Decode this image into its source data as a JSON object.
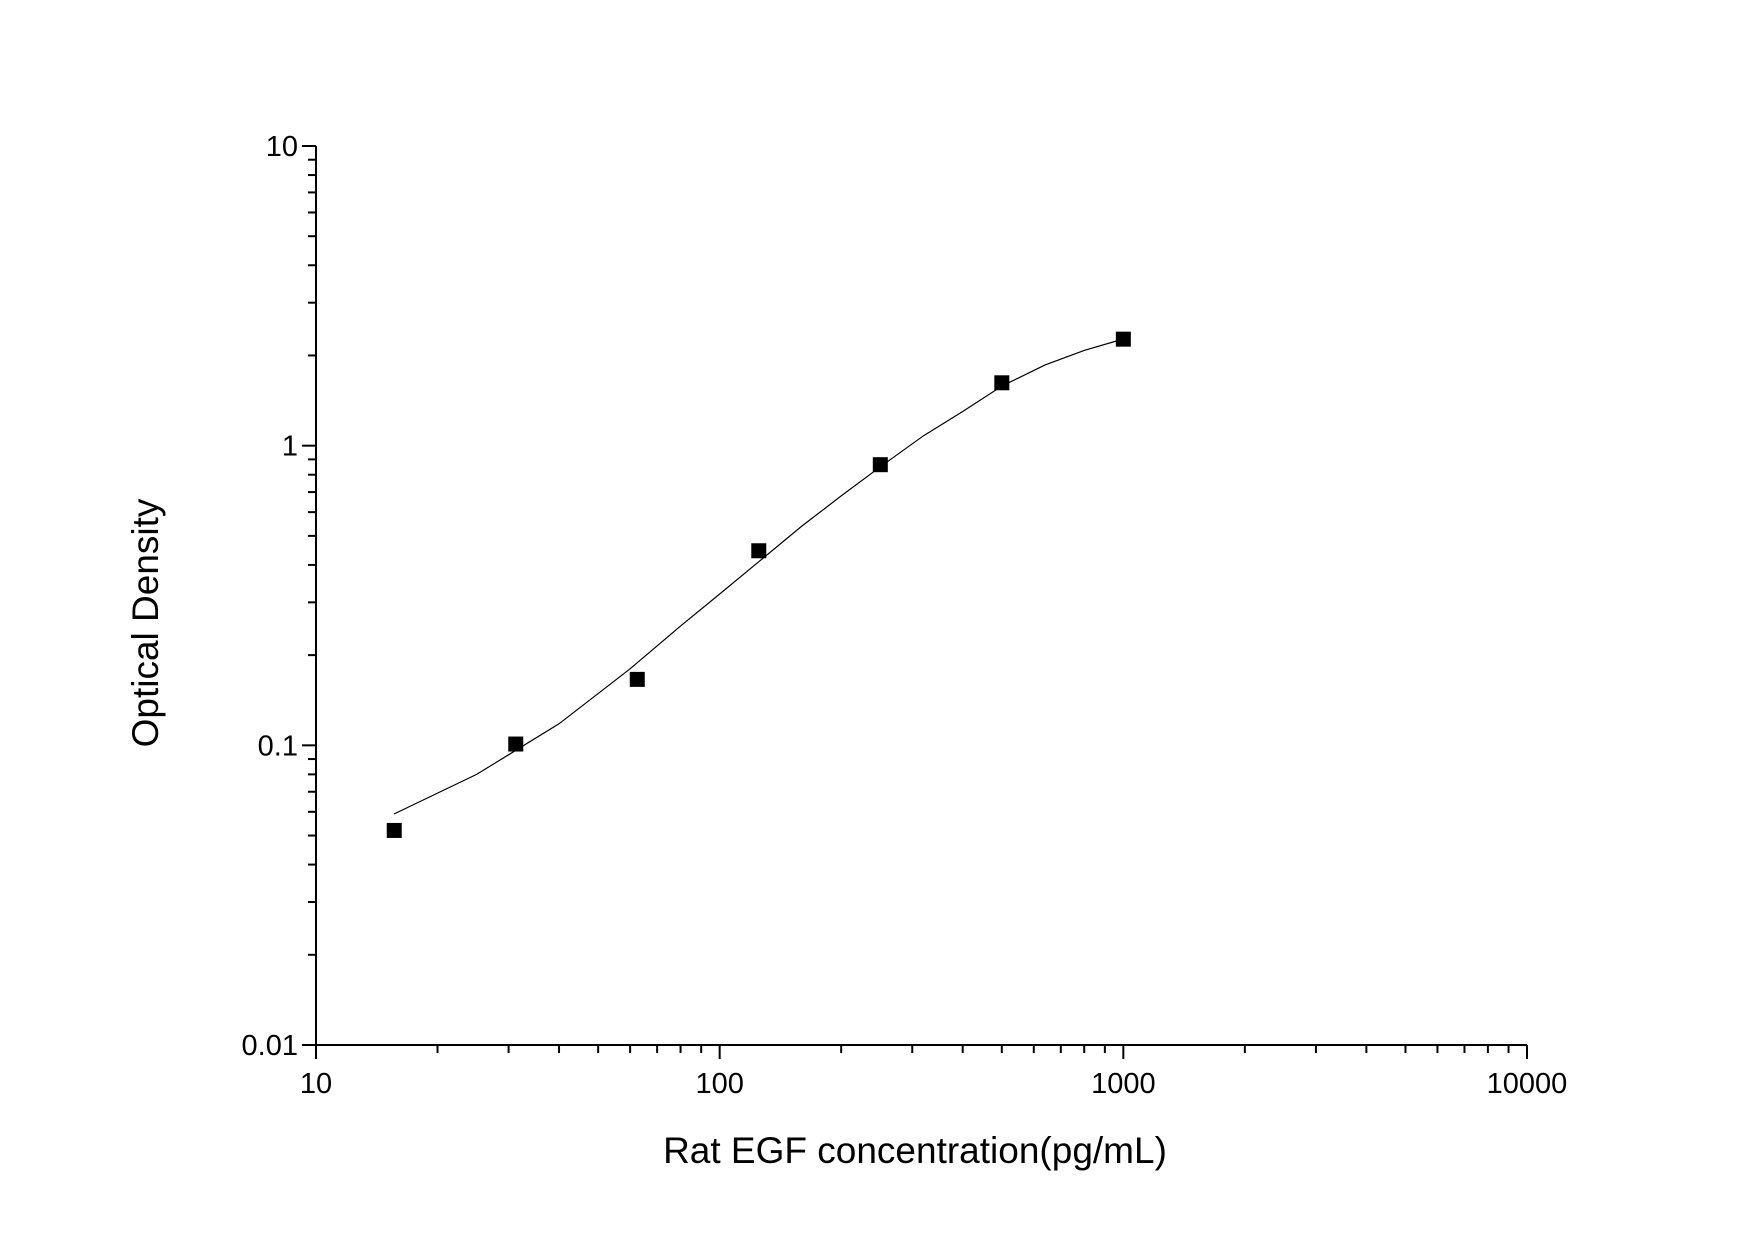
{
  "chart_data": {
    "type": "scatter",
    "title": "",
    "xlabel": "Rat EGF concentration(pg/mL)",
    "ylabel": "Optical Density",
    "x_scale": "log",
    "y_scale": "log",
    "xlim": [
      10,
      10000
    ],
    "ylim": [
      0.01,
      10
    ],
    "x_ticks": [
      {
        "value": 10,
        "label": "10"
      },
      {
        "value": 100,
        "label": "100"
      },
      {
        "value": 1000,
        "label": "1000"
      },
      {
        "value": 10000,
        "label": "10000"
      }
    ],
    "y_ticks": [
      {
        "value": 0.01,
        "label": "0.01"
      },
      {
        "value": 0.1,
        "label": "0.1"
      },
      {
        "value": 1,
        "label": "1"
      },
      {
        "value": 10,
        "label": "10"
      }
    ],
    "grid": false,
    "legend": "none",
    "series": [
      {
        "kind": "points",
        "marker": "square",
        "color": "#000000",
        "x": [
          15.625,
          31.25,
          62.5,
          125,
          250,
          500,
          1000
        ],
        "y": [
          0.052,
          0.101,
          0.166,
          0.446,
          0.864,
          1.621,
          2.267
        ]
      },
      {
        "kind": "fit-line",
        "color": "#000000",
        "x": [
          15.6,
          25,
          40,
          60,
          80,
          100,
          125,
          160,
          200,
          250,
          320,
          400,
          500,
          640,
          800,
          1000
        ],
        "y": [
          0.059,
          0.08,
          0.118,
          0.18,
          0.25,
          0.32,
          0.41,
          0.54,
          0.68,
          0.85,
          1.08,
          1.3,
          1.58,
          1.86,
          2.08,
          2.27
        ]
      }
    ]
  }
}
